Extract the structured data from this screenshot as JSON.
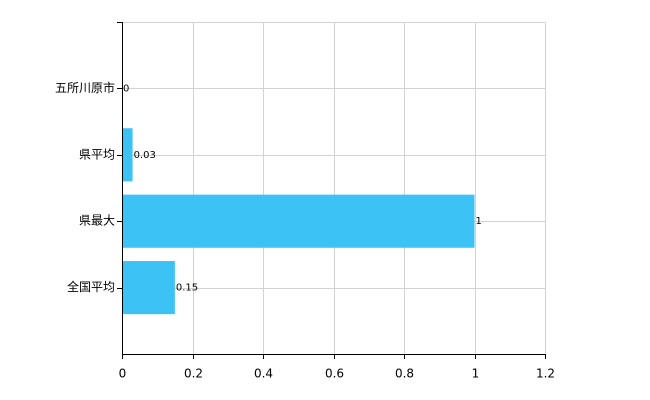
{
  "chart_data": {
    "type": "bar",
    "orientation": "horizontal",
    "categories": [
      "五所川原市",
      "県平均",
      "県最大",
      "全国平均"
    ],
    "values": [
      0,
      0.03,
      1,
      0.15
    ],
    "color": "#3dc2f5",
    "xlim": [
      0,
      1.2
    ],
    "xticks": [
      0,
      0.2,
      0.4,
      0.6,
      0.8,
      1,
      1.2
    ],
    "grid": true
  }
}
